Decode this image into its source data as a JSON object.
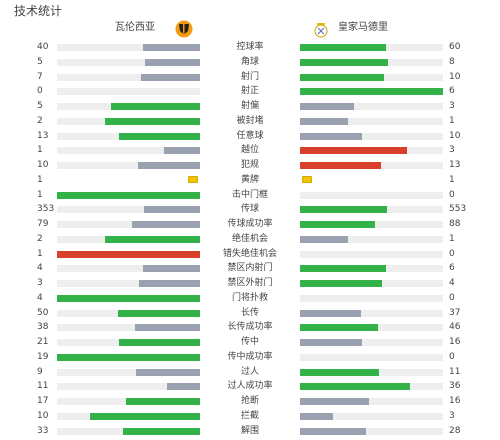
{
  "title": "技术统计",
  "teams": {
    "left": "瓦伦西亚",
    "right": "皇家马德里"
  },
  "colors": {
    "win": "#33b24a",
    "lose": "#9aa2b2",
    "danger": "#d9402b",
    "card": "#f2c400",
    "track": "#eeeeee"
  },
  "stats": [
    {
      "label": "控球率",
      "left": "40",
      "right": "60",
      "lf": 0.4,
      "rf": 0.6
    },
    {
      "label": "角球",
      "left": "5",
      "right": "8",
      "lf": 0.385,
      "rf": 0.615
    },
    {
      "label": "射门",
      "left": "7",
      "right": "10",
      "lf": 0.41,
      "rf": 0.59
    },
    {
      "label": "射正",
      "left": "0",
      "right": "6",
      "lf": 0,
      "rf": 1
    },
    {
      "label": "射偏",
      "left": "5",
      "right": "3",
      "lf": 0.625,
      "rf": 0.375
    },
    {
      "label": "被封堵",
      "left": "2",
      "right": "1",
      "lf": 0.667,
      "rf": 0.333
    },
    {
      "label": "任意球",
      "left": "13",
      "right": "10",
      "lf": 0.565,
      "rf": 0.435
    },
    {
      "label": "越位",
      "left": "1",
      "right": "3",
      "lf": 0.25,
      "rf": 0.75,
      "danger": "right"
    },
    {
      "label": "犯规",
      "left": "10",
      "right": "13",
      "lf": 0.435,
      "rf": 0.565,
      "danger": "right"
    },
    {
      "label": "黄牌",
      "left": "1",
      "right": "1",
      "type": "card"
    },
    {
      "label": "击中门框",
      "left": "1",
      "right": "0",
      "lf": 1,
      "rf": 0
    },
    {
      "label": "传球",
      "left": "353",
      "right": "553",
      "lf": 0.39,
      "rf": 0.61
    },
    {
      "label": "传球成功率",
      "left": "79",
      "right": "88",
      "lf": 0.473,
      "rf": 0.527
    },
    {
      "label": "绝佳机会",
      "left": "2",
      "right": "1",
      "lf": 0.667,
      "rf": 0.333
    },
    {
      "label": "错失绝佳机会",
      "left": "1",
      "right": "0",
      "lf": 1,
      "rf": 0,
      "danger": "left"
    },
    {
      "label": "禁区内射门",
      "left": "4",
      "right": "6",
      "lf": 0.4,
      "rf": 0.6
    },
    {
      "label": "禁区外射门",
      "left": "3",
      "right": "4",
      "lf": 0.43,
      "rf": 0.57
    },
    {
      "label": "门将扑救",
      "left": "4",
      "right": "0",
      "lf": 1,
      "rf": 0
    },
    {
      "label": "长传",
      "left": "50",
      "right": "37",
      "lf": 0.575,
      "rf": 0.425
    },
    {
      "label": "长传成功率",
      "left": "38",
      "right": "46",
      "lf": 0.452,
      "rf": 0.548
    },
    {
      "label": "传中",
      "left": "21",
      "right": "16",
      "lf": 0.568,
      "rf": 0.432
    },
    {
      "label": "传中成功率",
      "left": "19",
      "right": "0",
      "lf": 1,
      "rf": 0
    },
    {
      "label": "过人",
      "left": "9",
      "right": "11",
      "lf": 0.45,
      "rf": 0.55
    },
    {
      "label": "过人成功率",
      "left": "11",
      "right": "36",
      "lf": 0.234,
      "rf": 0.766
    },
    {
      "label": "抢断",
      "left": "17",
      "right": "16",
      "lf": 0.515,
      "rf": 0.485
    },
    {
      "label": "拦截",
      "left": "10",
      "right": "3",
      "lf": 0.77,
      "rf": 0.23
    },
    {
      "label": "解围",
      "left": "33",
      "right": "28",
      "lf": 0.541,
      "rf": 0.459
    }
  ]
}
